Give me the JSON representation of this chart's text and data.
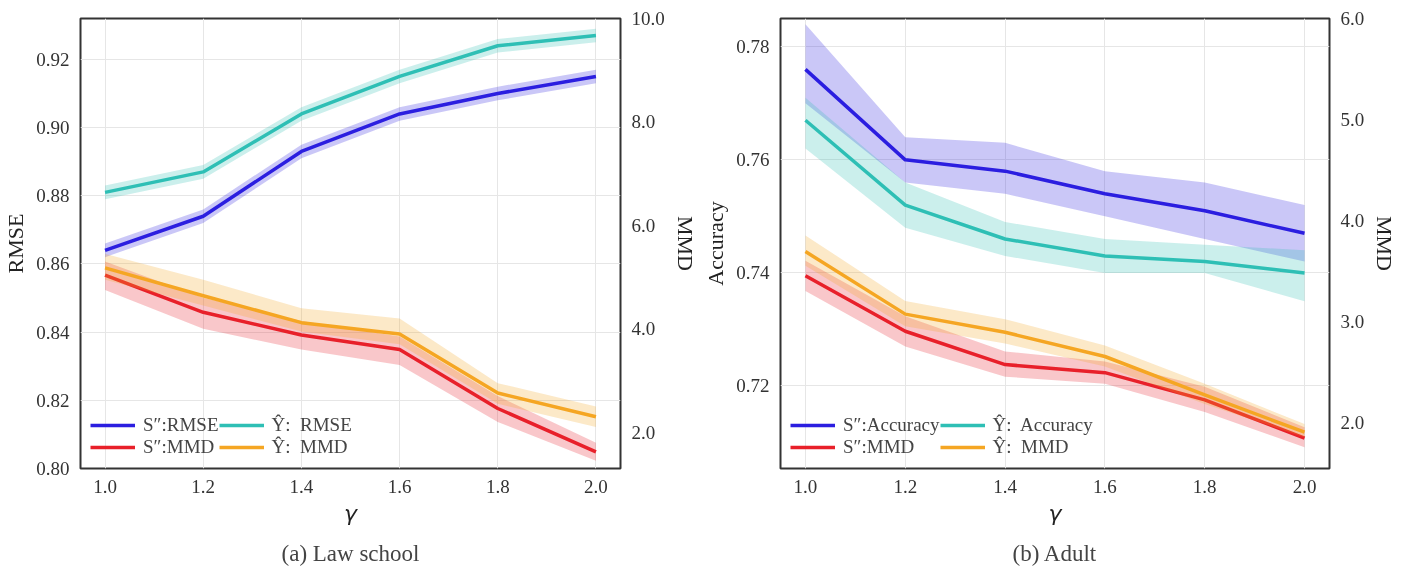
{
  "chart_data": [
    {
      "type": "line",
      "title": "(a) Law school",
      "xlabel": "γ",
      "ylabel": "RMSE",
      "y2label": "MMD",
      "x": [
        1.0,
        1.2,
        1.4,
        1.6,
        1.8,
        2.0
      ],
      "xlim": [
        0.95,
        2.05
      ],
      "xticks": [
        {
          "value": 1.0,
          "label": "1.0"
        },
        {
          "value": 1.2,
          "label": "1.2"
        },
        {
          "value": 1.4,
          "label": "1.4"
        },
        {
          "value": 1.6,
          "label": "1.6"
        },
        {
          "value": 1.8,
          "label": "1.8"
        },
        {
          "value": 2.0,
          "label": "2.0"
        }
      ],
      "ylim": [
        0.8,
        0.932
      ],
      "yticks": [
        {
          "value": 0.8,
          "label": "0.80"
        },
        0.82,
        0.84,
        0.86,
        0.88,
        {
          "value": 0.9,
          "label": "0.90"
        },
        0.92
      ],
      "y2lim": [
        1.3,
        10.0
      ],
      "y2ticks": [
        {
          "value": 2,
          "label": "2.0"
        },
        {
          "value": 4,
          "label": "4.0"
        },
        {
          "value": 6,
          "label": "6.0"
        },
        {
          "value": 8,
          "label": "8.0"
        },
        {
          "value": 10,
          "label": "10.0"
        }
      ],
      "grid": true,
      "legend": "bottom left",
      "line_style": "solid",
      "series": [
        {
          "name": "S″:RMSE",
          "color": "#2b1ee0",
          "values": [
            0.864,
            0.874,
            0.893,
            0.904,
            0.91,
            0.915
          ],
          "lower": [
            0.862,
            0.872,
            0.891,
            0.902,
            0.908,
            0.913
          ],
          "upper": [
            0.866,
            0.876,
            0.895,
            0.906,
            0.912,
            0.917
          ]
        },
        {
          "name": "Ŷ:  RMSE",
          "color": "#2ebfb5",
          "values": [
            0.881,
            0.887,
            0.904,
            0.915,
            0.924,
            0.927
          ],
          "lower": [
            0.879,
            0.885,
            0.902,
            0.913,
            0.922,
            0.925
          ],
          "upper": [
            0.883,
            0.889,
            0.906,
            0.917,
            0.926,
            0.929
          ]
        },
        {
          "name": "S″:MMD",
          "color": "#e8202a",
          "axis": "y2",
          "values": [
            5.04,
            4.32,
            3.88,
            3.6,
            2.46,
            1.62
          ],
          "lower": [
            4.75,
            4.0,
            3.6,
            3.3,
            2.2,
            1.45
          ],
          "upper": [
            5.3,
            4.6,
            4.15,
            3.85,
            2.7,
            1.8
          ]
        },
        {
          "name": "Ŷ:  MMD",
          "color": "#f5a623",
          "axis": "y2",
          "values": [
            5.18,
            4.64,
            4.12,
            3.9,
            2.76,
            2.3
          ],
          "lower": [
            4.95,
            4.45,
            3.95,
            3.7,
            2.55,
            2.1
          ],
          "upper": [
            5.45,
            4.95,
            4.4,
            4.2,
            2.95,
            2.5
          ]
        }
      ]
    },
    {
      "type": "line",
      "title": "(b) Adult",
      "xlabel": "γ",
      "ylabel": "Accuracy",
      "y2label": "MMD",
      "x": [
        1.0,
        1.2,
        1.4,
        1.6,
        1.8,
        2.0
      ],
      "xlim": [
        0.95,
        2.05
      ],
      "xticks": [
        {
          "value": 1.0,
          "label": "1.0"
        },
        {
          "value": 1.2,
          "label": "1.2"
        },
        {
          "value": 1.4,
          "label": "1.4"
        },
        {
          "value": 1.6,
          "label": "1.6"
        },
        {
          "value": 1.8,
          "label": "1.8"
        },
        {
          "value": 2.0,
          "label": "2.0"
        }
      ],
      "ylim": [
        0.7054,
        0.785
      ],
      "yticks": [
        0.72,
        0.74,
        0.76,
        0.78
      ],
      "y2lim": [
        1.54,
        6.0
      ],
      "y2ticks": [
        {
          "value": 2,
          "label": "2.0"
        },
        {
          "value": 3,
          "label": "3.0"
        },
        {
          "value": 4,
          "label": "4.0"
        },
        {
          "value": 5,
          "label": "5.0"
        },
        {
          "value": 6,
          "label": "6.0"
        }
      ],
      "grid": true,
      "legend": "bottom left",
      "line_style": "solid",
      "series": [
        {
          "name": "S″:Accuracy",
          "color": "#2b1ee0",
          "values": [
            0.776,
            0.76,
            0.758,
            0.754,
            0.751,
            0.747
          ],
          "lower": [
            0.77,
            0.756,
            0.754,
            0.75,
            0.746,
            0.742
          ],
          "upper": [
            0.784,
            0.764,
            0.763,
            0.758,
            0.756,
            0.752
          ]
        },
        {
          "name": "Ŷ:  Accuracy",
          "color": "#2ebfb5",
          "values": [
            0.767,
            0.752,
            0.746,
            0.743,
            0.742,
            0.74
          ],
          "lower": [
            0.762,
            0.748,
            0.743,
            0.74,
            0.74,
            0.735
          ],
          "upper": [
            0.771,
            0.756,
            0.749,
            0.746,
            0.745,
            0.744
          ]
        },
        {
          "name": "S″:MMD",
          "color": "#e8202a",
          "axis": "y2",
          "values": [
            3.45,
            2.9,
            2.57,
            2.49,
            2.22,
            1.84
          ],
          "lower": [
            3.3,
            2.75,
            2.45,
            2.38,
            2.1,
            1.75
          ],
          "upper": [
            3.6,
            3.05,
            2.7,
            2.6,
            2.35,
            1.95
          ]
        },
        {
          "name": "Ŷ:  MMD",
          "color": "#f5a623",
          "axis": "y2",
          "values": [
            3.69,
            3.07,
            2.89,
            2.65,
            2.27,
            1.9
          ],
          "lower": [
            3.55,
            2.95,
            2.78,
            2.55,
            2.18,
            1.85
          ],
          "upper": [
            3.85,
            3.2,
            3.02,
            2.76,
            2.38,
            1.98
          ]
        }
      ]
    }
  ]
}
